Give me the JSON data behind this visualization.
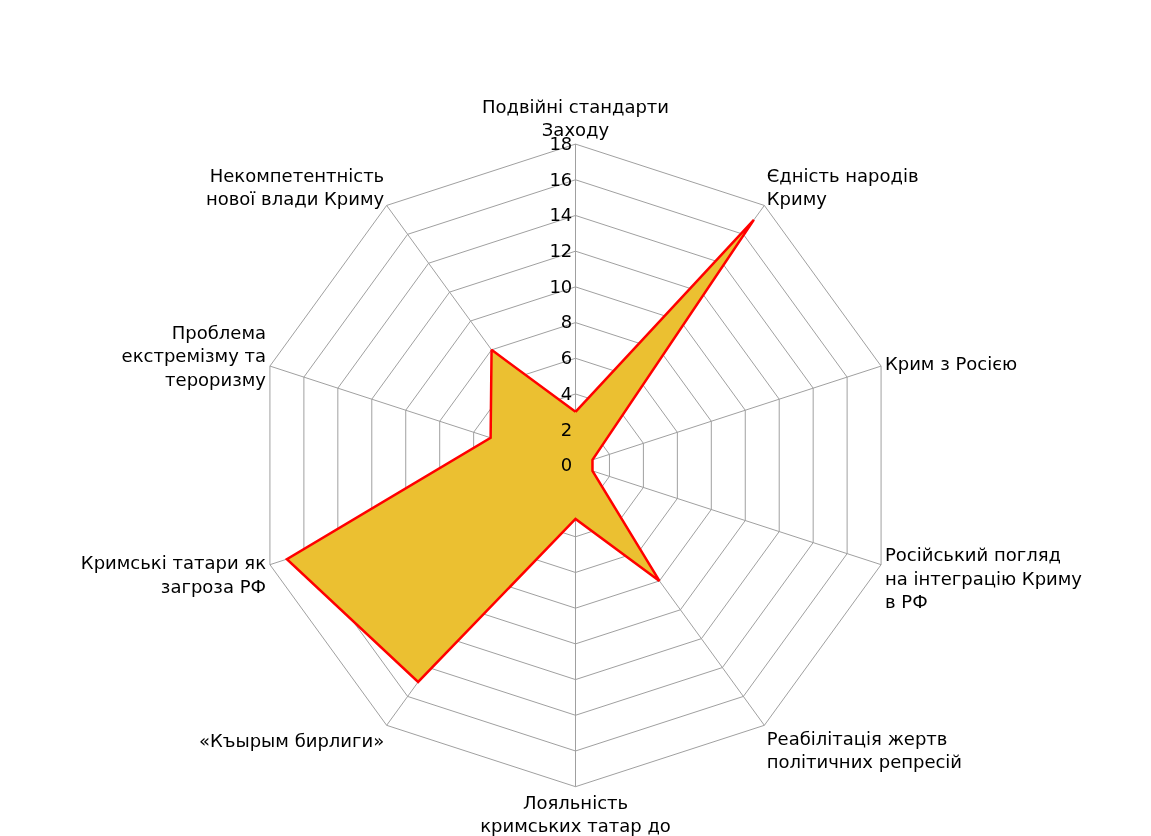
{
  "chart_data": {
    "type": "radar",
    "categories": [
      "Подвійні стандарти Заходу",
      "Єдність народів Криму",
      "Крим з Росією",
      "Російський погляд на інтеграцію Криму в РФ",
      "Реабілітація жертв політичних репресій",
      "Лояльність кримських татар до",
      "«Къырым бирлиги»",
      "Кримські татари як загроза РФ",
      "Проблема екстремізму та тероризму",
      "Некомпетентність нової влади Криму"
    ],
    "series": [
      {
        "color": "#ebc031",
        "values": [
          3,
          17,
          1,
          1,
          8,
          3,
          15,
          17,
          5,
          8
        ]
      }
    ],
    "ylim": [
      0,
      18
    ],
    "yticks": [
      0,
      2,
      4,
      6,
      8,
      10,
      12,
      14,
      16,
      18
    ],
    "grid": true,
    "marker": "none"
  }
}
